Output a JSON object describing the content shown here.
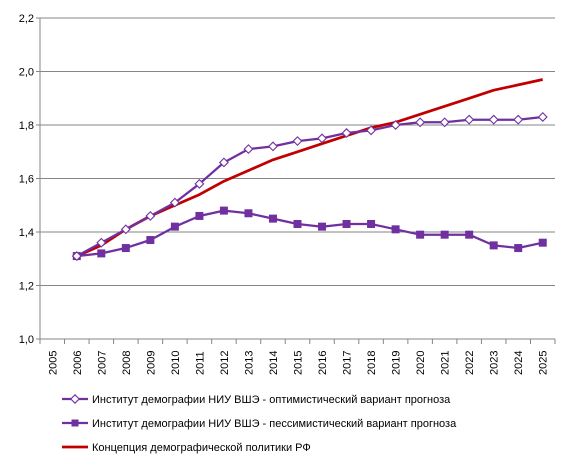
{
  "chart_data": {
    "type": "line",
    "title": "",
    "xlabel": "",
    "ylabel": "",
    "categories": [
      "2005",
      "2006",
      "2007",
      "2008",
      "2009",
      "2010",
      "2011",
      "2012",
      "2013",
      "2014",
      "2015",
      "2016",
      "2017",
      "2018",
      "2019",
      "2020",
      "2021",
      "2022",
      "2023",
      "2024",
      "2025"
    ],
    "ylim": [
      1.0,
      2.2
    ],
    "yticks": [
      "1,0",
      "1,2",
      "1,4",
      "1,6",
      "1,8",
      "2,0",
      "2,2"
    ],
    "grid": "horizontal",
    "legend_position": "bottom",
    "series": [
      {
        "name": "Институт демографии НИУ ВШЭ - оптимистический вариант прогноза",
        "color": "#7030A0",
        "marker": "open-diamond",
        "values": [
          null,
          1.31,
          1.36,
          1.41,
          1.46,
          1.51,
          1.58,
          1.66,
          1.71,
          1.72,
          1.74,
          1.75,
          1.77,
          1.78,
          1.8,
          1.81,
          1.81,
          1.82,
          1.82,
          1.82,
          1.83
        ]
      },
      {
        "name": "Институт демографии НИУ ВШЭ - пессимистический вариант прогноза",
        "color": "#7030A0",
        "marker": "filled-square",
        "values": [
          null,
          1.31,
          1.32,
          1.34,
          1.37,
          1.42,
          1.46,
          1.48,
          1.47,
          1.45,
          1.43,
          1.42,
          1.43,
          1.43,
          1.41,
          1.39,
          1.39,
          1.39,
          1.35,
          1.34,
          1.36
        ]
      },
      {
        "name": "Концепция демографической политики РФ",
        "color": "#C00000",
        "marker": "none",
        "values": [
          null,
          1.31,
          1.35,
          1.41,
          1.46,
          1.5,
          1.54,
          1.59,
          1.63,
          1.67,
          1.7,
          1.73,
          1.76,
          1.79,
          1.81,
          1.84,
          1.87,
          1.9,
          1.93,
          1.95,
          1.97
        ]
      }
    ]
  }
}
